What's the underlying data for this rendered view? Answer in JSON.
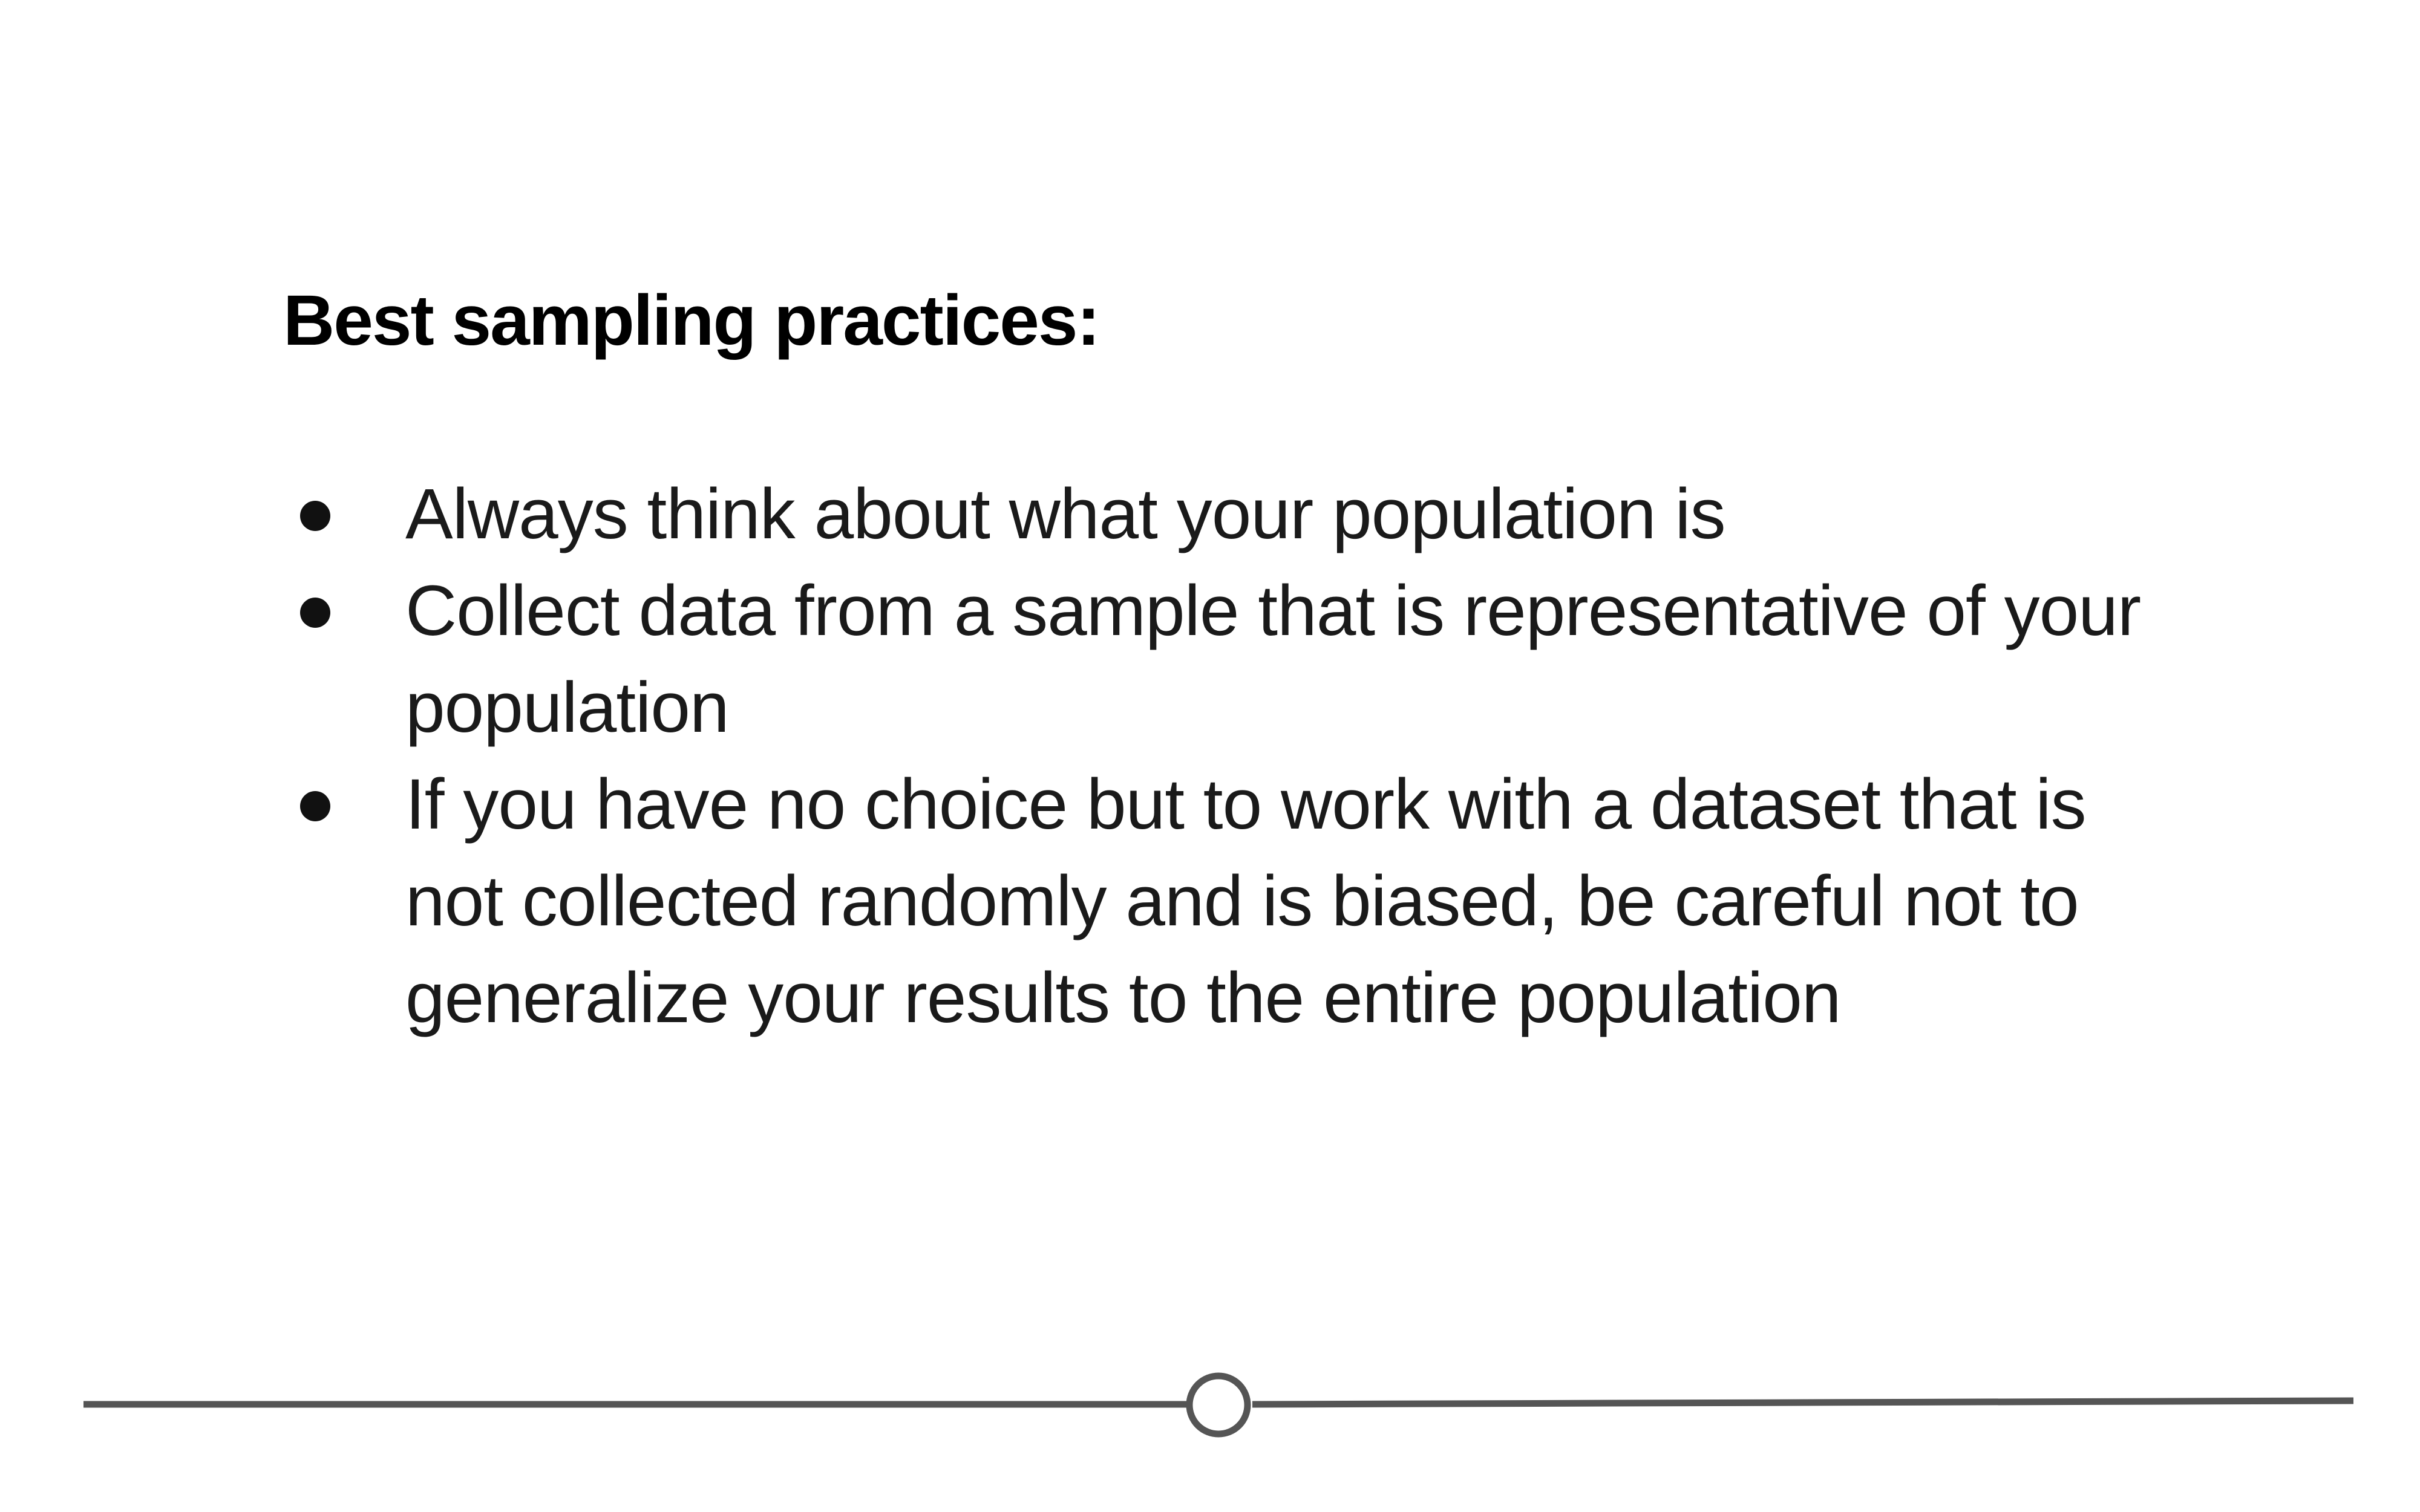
{
  "slide": {
    "heading": "Best sampling practices:",
    "bullets": [
      "Always think about what your population is",
      "Collect data from a sample that is representative of your population",
      "If you have no choice but to work with a dataset that is not collected randomly and is biased, be careful not to generalize your results to the entire population"
    ]
  },
  "colors": {
    "text": "#111111",
    "divider": "#555555"
  },
  "icons": {
    "bullet": "bullet-dot-icon",
    "divider_marker": "circle-icon"
  }
}
